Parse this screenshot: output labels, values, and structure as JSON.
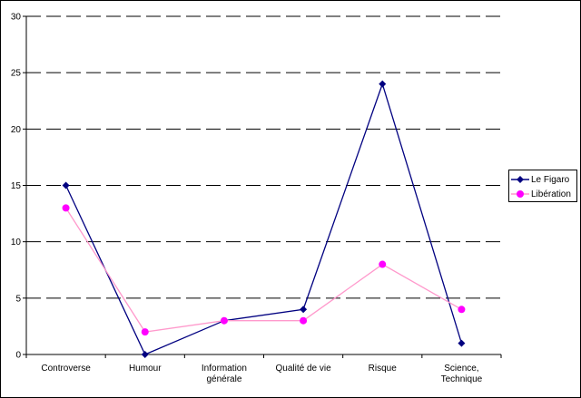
{
  "chart_data": {
    "type": "line",
    "categories": [
      "Controverse",
      "Humour",
      "Information générale",
      "Qualité de vie",
      "Risque",
      "Science, Technique"
    ],
    "category_lines": [
      [
        "Controverse"
      ],
      [
        "Humour"
      ],
      [
        "Information",
        "générale"
      ],
      [
        "Qualité de vie"
      ],
      [
        "Risque"
      ],
      [
        "Science,",
        "Technique"
      ]
    ],
    "series": [
      {
        "name": "Le Figaro",
        "values": [
          15,
          0,
          3,
          4,
          24,
          1
        ],
        "color": "#000080",
        "marker": "diamond"
      },
      {
        "name": "Libération",
        "values": [
          13,
          2,
          3,
          3,
          8,
          4
        ],
        "color": "#ff99cc",
        "marker_color": "#ff00ff",
        "marker": "circle"
      }
    ],
    "ylim": [
      0,
      30
    ],
    "yticks": [
      0,
      5,
      10,
      15,
      20,
      25,
      30
    ],
    "grid": "dashed horizontal",
    "legend": "right",
    "xlabel": "",
    "ylabel": "",
    "title": ""
  }
}
